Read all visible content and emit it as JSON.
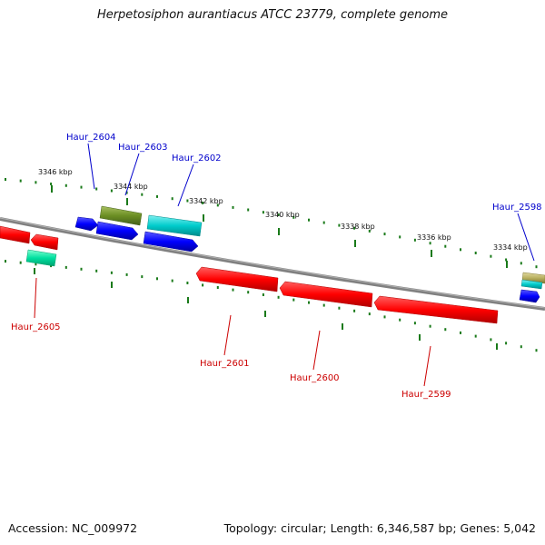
{
  "title": "Herpetosiphon aurantiacus ATCC 23779, complete genome",
  "footer": {
    "accession": "Accession: NC_009972",
    "stats": "Topology: circular; Length: 6,346,587 bp; Genes: 5,042"
  },
  "colors": {
    "forward_label": "#0000cc",
    "reverse_label": "#cc0000",
    "backbone": "#808080",
    "tick": "#1a7a1a",
    "red_gene": "#ff0000",
    "blue_gene": "#0000ff",
    "cyan_gene": "#00c8c8",
    "olive_gene": "#6b8e23",
    "teal_gene": "#00e0a0",
    "khaki_gene": "#b8b060"
  },
  "ticks": [
    {
      "label": "3346 kbp"
    },
    {
      "label": "3344 kbp"
    },
    {
      "label": "3342 kbp"
    },
    {
      "label": "3340 kbp"
    },
    {
      "label": "3338 kbp"
    },
    {
      "label": "3336 kbp"
    },
    {
      "label": "3334 kbp"
    }
  ],
  "genes_forward": [
    {
      "name": "Haur_2604"
    },
    {
      "name": "Haur_2603"
    },
    {
      "name": "Haur_2602"
    },
    {
      "name": "Haur_2598"
    }
  ],
  "genes_reverse": [
    {
      "name": "Haur_2605"
    },
    {
      "name": "Haur_2601"
    },
    {
      "name": "Haur_2600"
    },
    {
      "name": "Haur_2599"
    }
  ]
}
